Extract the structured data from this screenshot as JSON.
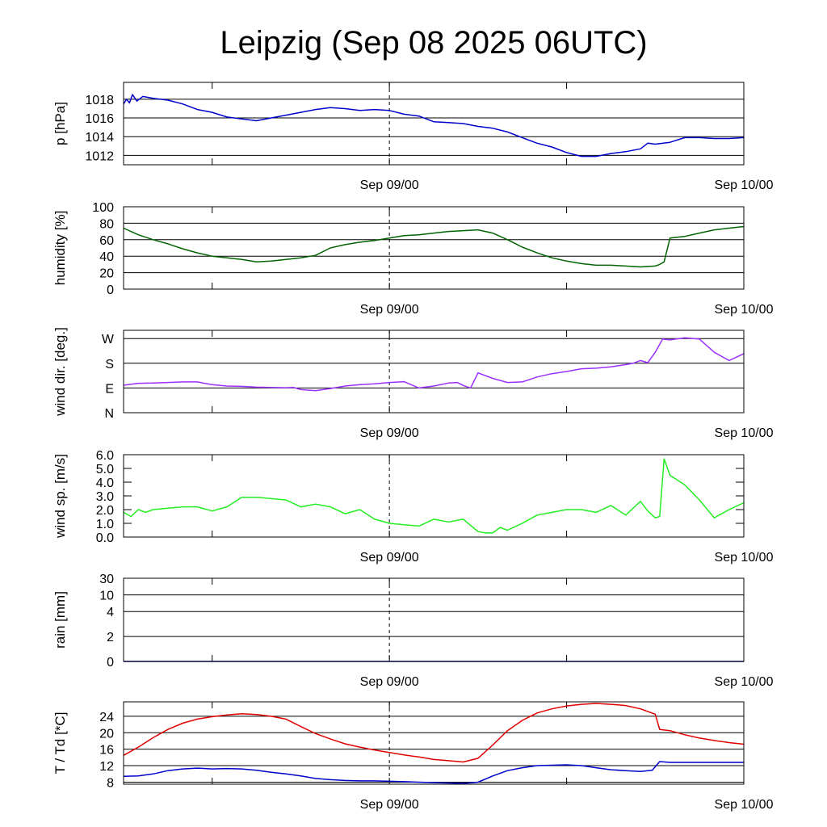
{
  "title": "Leipzig (Sep 08 2025 06UTC)",
  "x_axis": {
    "start": "Sep 08 2025 06UTC",
    "range_hours": [
      0,
      42
    ],
    "minor_ticks_hours": [
      6,
      30
    ],
    "major_ticks": [
      {
        "hour": 18,
        "label": "Sep 09/00"
      },
      {
        "hour": 42,
        "label": "Sep 10/00"
      }
    ],
    "midnight_marker_hour": 18
  },
  "chart_data": [
    {
      "type": "line",
      "name": "pressure",
      "ylabel": "p [hPa]",
      "ylim": [
        1011,
        1019.8
      ],
      "yticks": [
        {
          "v": 1012,
          "label": "1012"
        },
        {
          "v": 1014,
          "label": "1014"
        },
        {
          "v": 1016,
          "label": "1016"
        },
        {
          "v": 1018,
          "label": "1018"
        }
      ],
      "grid": true,
      "series": [
        {
          "name": "p",
          "color": "#0000cc",
          "x": [
            0,
            0.2,
            0.4,
            0.6,
            0.9,
            1.3,
            2,
            3,
            4,
            5,
            6,
            7,
            8,
            9,
            10,
            11,
            12,
            13,
            14,
            15,
            16,
            17,
            18,
            19,
            20,
            21,
            22,
            23,
            24,
            25,
            26,
            27,
            28,
            29,
            30,
            31,
            32,
            33,
            34,
            35,
            35.5,
            36,
            37,
            38,
            39,
            40,
            41,
            42
          ],
          "values": [
            1017.5,
            1018.0,
            1017.6,
            1018.5,
            1017.8,
            1018.3,
            1018.1,
            1017.9,
            1017.5,
            1016.9,
            1016.6,
            1016.1,
            1015.9,
            1015.7,
            1016.0,
            1016.3,
            1016.6,
            1016.9,
            1017.1,
            1017.0,
            1016.8,
            1016.9,
            1016.8,
            1016.4,
            1016.2,
            1015.6,
            1015.5,
            1015.4,
            1015.1,
            1014.9,
            1014.5,
            1013.9,
            1013.3,
            1012.9,
            1012.3,
            1011.9,
            1011.9,
            1012.2,
            1012.4,
            1012.7,
            1013.3,
            1013.2,
            1013.4,
            1013.9,
            1013.9,
            1013.8,
            1013.8,
            1013.9
          ]
        }
      ]
    },
    {
      "type": "line",
      "name": "humidity",
      "ylabel": "humidity [%]",
      "ylim": [
        0,
        100
      ],
      "yticks": [
        {
          "v": 0,
          "label": "0"
        },
        {
          "v": 20,
          "label": "20"
        },
        {
          "v": 40,
          "label": "40"
        },
        {
          "v": 60,
          "label": "60"
        },
        {
          "v": 80,
          "label": "80"
        },
        {
          "v": 100,
          "label": "100"
        }
      ],
      "grid": true,
      "series": [
        {
          "name": "humidity",
          "color": "#006400",
          "x": [
            0,
            1,
            2,
            3,
            4,
            5,
            6,
            7,
            8,
            9,
            10,
            11,
            12,
            13,
            14,
            15,
            16,
            17,
            18,
            19,
            20,
            21,
            22,
            23,
            24,
            25,
            26,
            27,
            28,
            29,
            30,
            31,
            32,
            33,
            34,
            35,
            36,
            36.3,
            36.6,
            37,
            38,
            39,
            40,
            41,
            42
          ],
          "values": [
            74,
            66,
            60,
            55,
            49,
            44,
            40,
            38,
            36,
            33,
            34,
            36,
            38,
            41,
            50,
            54,
            57,
            59,
            62,
            65,
            66,
            68,
            70,
            71,
            72,
            68,
            60,
            51,
            44,
            38,
            34,
            31,
            29,
            29,
            28,
            27,
            28,
            30,
            33,
            62,
            64,
            68,
            72,
            74,
            76
          ]
        }
      ]
    },
    {
      "type": "line",
      "name": "wind_direction",
      "ylabel": "wind dir. [deg.]",
      "ylim": [
        0,
        300
      ],
      "yticks": [
        {
          "v": 0,
          "label": "N"
        },
        {
          "v": 90,
          "label": "E"
        },
        {
          "v": 180,
          "label": "S"
        },
        {
          "v": 270,
          "label": "W"
        }
      ],
      "grid": true,
      "series": [
        {
          "name": "wind dir",
          "color": "#9b30ff",
          "x": [
            0,
            1,
            2,
            3,
            4,
            5,
            6,
            7,
            8,
            9,
            10,
            11,
            11.5,
            12,
            13,
            14,
            15,
            16,
            17,
            18,
            19,
            20,
            21,
            22,
            22.6,
            23,
            23.5,
            24,
            25,
            26,
            27,
            28,
            29,
            30,
            31,
            32,
            33,
            34,
            34.5,
            35,
            35.5,
            36,
            36.5,
            37,
            38,
            39,
            40,
            41,
            42
          ],
          "values": [
            100,
            107,
            108,
            110,
            112,
            112,
            102,
            97,
            96,
            93,
            92,
            91,
            92,
            84,
            80,
            88,
            97,
            102,
            105,
            110,
            113,
            90,
            97,
            108,
            110,
            99,
            90,
            145,
            125,
            110,
            112,
            130,
            142,
            150,
            160,
            162,
            167,
            175,
            180,
            190,
            182,
            220,
            268,
            265,
            273,
            268,
            220,
            190,
            215
          ]
        }
      ]
    },
    {
      "type": "line",
      "name": "wind_speed",
      "ylabel": "wind sp. [m/s]",
      "ylim": [
        0,
        6
      ],
      "yticks": [
        {
          "v": 0,
          "label": "0.0"
        },
        {
          "v": 1,
          "label": "1.0"
        },
        {
          "v": 2,
          "label": "2.0"
        },
        {
          "v": 3,
          "label": "3.0"
        },
        {
          "v": 4,
          "label": "4.0"
        },
        {
          "v": 5,
          "label": "5.0"
        },
        {
          "v": 6,
          "label": "6.0"
        }
      ],
      "grid": false,
      "series": [
        {
          "name": "wind speed",
          "color": "#22ee22",
          "x": [
            0,
            0.5,
            1,
            1.5,
            2,
            3,
            4,
            5,
            6,
            7,
            8,
            9,
            10,
            11,
            12,
            13,
            14,
            15,
            16,
            17,
            18,
            19,
            20,
            21,
            22,
            23,
            24,
            24.5,
            25,
            25.5,
            26,
            27,
            28,
            29,
            30,
            31,
            32,
            33,
            34,
            35,
            35.5,
            36,
            36.3,
            36.6,
            37,
            38,
            39,
            40,
            41,
            42
          ],
          "values": [
            1.8,
            1.5,
            2.0,
            1.8,
            2.0,
            2.1,
            2.2,
            2.2,
            1.9,
            2.2,
            2.9,
            2.9,
            2.8,
            2.7,
            2.2,
            2.4,
            2.2,
            1.7,
            2.0,
            1.3,
            1.0,
            0.9,
            0.8,
            1.3,
            1.1,
            1.3,
            0.4,
            0.3,
            0.3,
            0.7,
            0.5,
            1.0,
            1.6,
            1.8,
            2.0,
            2.0,
            1.8,
            2.3,
            1.6,
            2.6,
            1.9,
            1.4,
            1.5,
            5.7,
            4.5,
            3.8,
            2.7,
            1.4,
            2.0,
            2.5
          ]
        }
      ]
    },
    {
      "type": "line",
      "name": "rain",
      "ylabel": "rain [mm]",
      "ylim": [
        0,
        30
      ],
      "yticks": [
        {
          "v": 0,
          "label": "0"
        },
        {
          "v": 2,
          "label": "2"
        },
        {
          "v": 4,
          "label": "4"
        },
        {
          "v": 10,
          "label": "10"
        },
        {
          "v": 30,
          "label": "30"
        }
      ],
      "grid": true,
      "series": [
        {
          "name": "rain",
          "color": "#0000cc",
          "x": [
            0,
            42
          ],
          "values": [
            0,
            0
          ]
        }
      ]
    },
    {
      "type": "line",
      "name": "temperature_dewpoint",
      "ylabel": "T / Td [*C]",
      "ylim": [
        7.5,
        27.5
      ],
      "yticks": [
        {
          "v": 8,
          "label": "8"
        },
        {
          "v": 12,
          "label": "12"
        },
        {
          "v": 16,
          "label": "16"
        },
        {
          "v": 20,
          "label": "20"
        },
        {
          "v": 24,
          "label": "24"
        }
      ],
      "grid": true,
      "series": [
        {
          "name": "T",
          "color": "#e00000",
          "x": [
            0,
            1,
            2,
            3,
            4,
            5,
            6,
            7,
            8,
            9,
            10,
            11,
            12,
            13,
            14,
            15,
            16,
            17,
            18,
            19,
            20,
            21,
            22,
            23,
            24,
            25,
            26,
            27,
            28,
            29,
            30,
            31,
            32,
            33,
            34,
            35,
            36,
            36.3,
            37,
            38,
            39,
            40,
            41,
            42
          ],
          "values": [
            14.5,
            16.5,
            18.8,
            20.8,
            22.3,
            23.3,
            23.9,
            24.3,
            24.6,
            24.4,
            24.0,
            23.3,
            21.5,
            19.8,
            18.5,
            17.3,
            16.5,
            15.8,
            15.2,
            14.6,
            14.1,
            13.5,
            13.2,
            12.9,
            13.8,
            17.0,
            20.5,
            23.0,
            24.8,
            25.8,
            26.5,
            26.9,
            27.1,
            26.9,
            26.6,
            25.8,
            24.5,
            20.8,
            20.5,
            19.5,
            18.7,
            18.1,
            17.6,
            17.2
          ]
        },
        {
          "name": "Td",
          "color": "#0000cc",
          "x": [
            0,
            1,
            2,
            3,
            4,
            5,
            6,
            7,
            8,
            9,
            10,
            11,
            12,
            13,
            14,
            15,
            16,
            17,
            18,
            19,
            20,
            21,
            22,
            23,
            24,
            25,
            26,
            27,
            28,
            29,
            30,
            31,
            32,
            33,
            34,
            35,
            35.8,
            36.3,
            37,
            38,
            39,
            40,
            41,
            42
          ],
          "values": [
            9.4,
            9.5,
            10.0,
            10.8,
            11.2,
            11.4,
            11.2,
            11.3,
            11.2,
            10.9,
            10.4,
            10.0,
            9.5,
            8.9,
            8.6,
            8.4,
            8.3,
            8.3,
            8.2,
            8.1,
            8.0,
            7.9,
            7.8,
            7.7,
            8.0,
            9.5,
            10.8,
            11.5,
            12.0,
            12.1,
            12.2,
            12.0,
            11.5,
            11.0,
            10.8,
            10.6,
            10.9,
            13.0,
            12.8,
            12.8,
            12.8,
            12.8,
            12.8,
            12.8
          ]
        }
      ]
    }
  ]
}
